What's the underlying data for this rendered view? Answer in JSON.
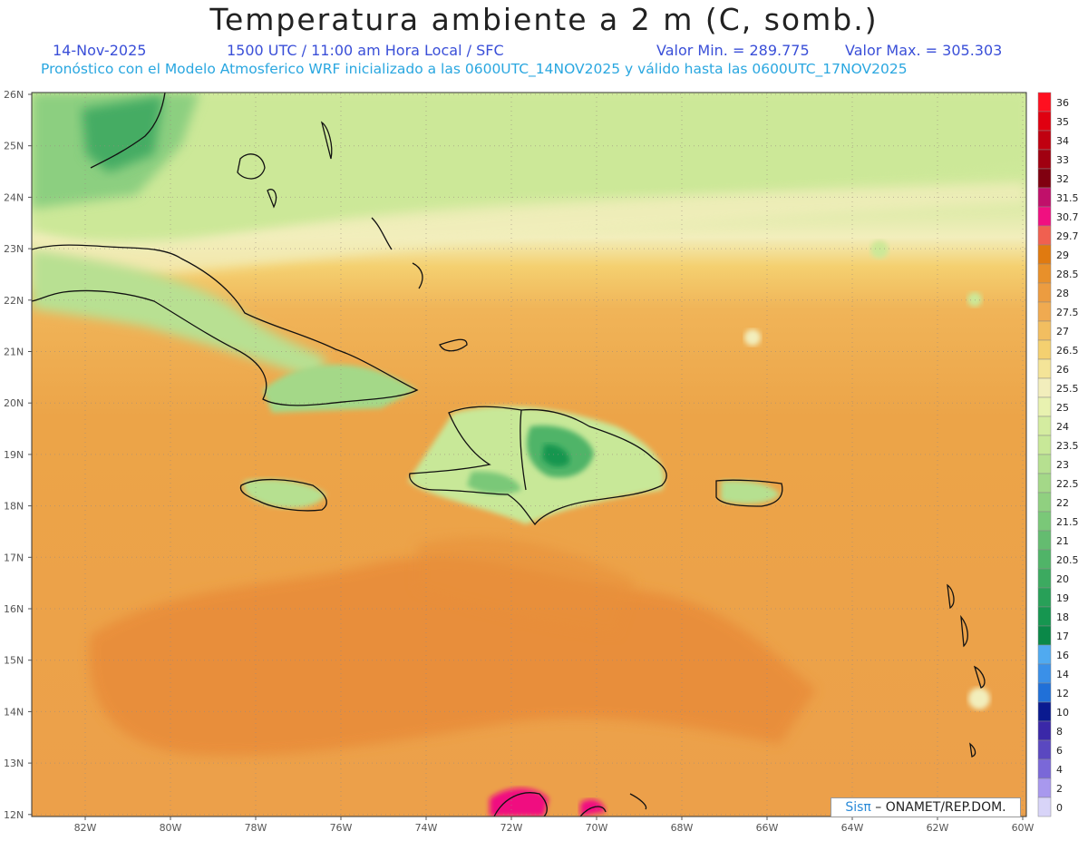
{
  "header": {
    "title": "Temperatura ambiente a 2 m (C, somb.)",
    "date": "14-Nov-2025",
    "time": "1500 UTC / 11:00 am Hora Local / SFC",
    "min_label": "Valor Min. = 289.775",
    "max_label": "Valor Max. = 305.303",
    "model_line": "Pronóstico con el Modelo Atmosferico WRF inicializado a las 0600UTC_14NOV2025 y válido hasta las  0600UTC_17NOV2025"
  },
  "map": {
    "lat_labels": [
      "26N",
      "25N",
      "24N",
      "23N",
      "22N",
      "21N",
      "20N",
      "19N",
      "18N",
      "17N",
      "16N",
      "15N",
      "14N",
      "13N",
      "12N"
    ],
    "lon_labels": [
      "82W",
      "80W",
      "78W",
      "76W",
      "74W",
      "72W",
      "70W",
      "68W",
      "66W",
      "64W",
      "62W",
      "60W"
    ]
  },
  "legend": {
    "levels": [
      {
        "label": "36",
        "color": "#ff1020"
      },
      {
        "label": "35",
        "color": "#e00010"
      },
      {
        "label": "34",
        "color": "#c00010"
      },
      {
        "label": "33",
        "color": "#a00010"
      },
      {
        "label": "32",
        "color": "#800010"
      },
      {
        "label": "31.5",
        "color": "#c0106a"
      },
      {
        "label": "30.7",
        "color": "#f01080"
      },
      {
        "label": "29.7",
        "color": "#f06050"
      },
      {
        "label": "29",
        "color": "#e07a10"
      },
      {
        "label": "28.5",
        "color": "#e8902a"
      },
      {
        "label": "28",
        "color": "#ec9c40"
      },
      {
        "label": "27.5",
        "color": "#f0aa50"
      },
      {
        "label": "27",
        "color": "#f2be60"
      },
      {
        "label": "26.5",
        "color": "#f4d070"
      },
      {
        "label": "26",
        "color": "#f4e498"
      },
      {
        "label": "25.5",
        "color": "#f2eebc"
      },
      {
        "label": "25",
        "color": "#e8f2b0"
      },
      {
        "label": "24",
        "color": "#d4eca0"
      },
      {
        "label": "23.5",
        "color": "#c8e898"
      },
      {
        "label": "23",
        "color": "#b6e090"
      },
      {
        "label": "22.5",
        "color": "#a4d888"
      },
      {
        "label": "22",
        "color": "#90d080"
      },
      {
        "label": "21.5",
        "color": "#7ac878"
      },
      {
        "label": "21",
        "color": "#64bc70"
      },
      {
        "label": "20.5",
        "color": "#50b468"
      },
      {
        "label": "20",
        "color": "#3caa60"
      },
      {
        "label": "19",
        "color": "#28a058"
      },
      {
        "label": "18",
        "color": "#169650"
      },
      {
        "label": "17",
        "color": "#0a8848"
      },
      {
        "label": "16",
        "color": "#50aaf0"
      },
      {
        "label": "14",
        "color": "#3a90e8"
      },
      {
        "label": "12",
        "color": "#2070d8"
      },
      {
        "label": "10",
        "color": "#0a1a90"
      },
      {
        "label": "8",
        "color": "#3a28a8"
      },
      {
        "label": "6",
        "color": "#5a48c0"
      },
      {
        "label": "4",
        "color": "#7a68d8"
      },
      {
        "label": "2",
        "color": "#a898ee"
      },
      {
        "label": "0",
        "color": "#d8d4f8"
      }
    ]
  },
  "credit": {
    "sis": "Sisπ",
    "rest": " – ONAMET/REP.DOM."
  },
  "colors": {
    "ocean": "#f0a44c",
    "ocean_dark": "#e89038",
    "north": "#cce898",
    "land_green": "#6cc078",
    "coast": "#111111",
    "title_blue": "#3a4fd8",
    "subtitle_cyan": "#2aa7e0"
  }
}
